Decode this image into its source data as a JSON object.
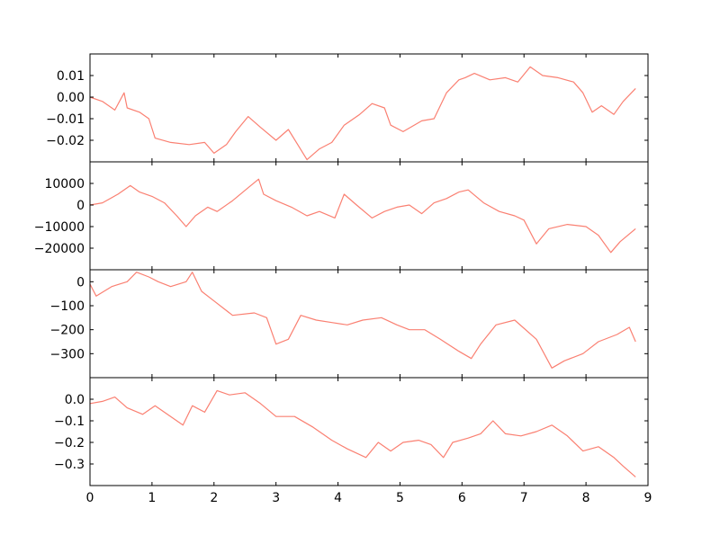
{
  "chart_data": {
    "type": "line",
    "x_range": [
      0,
      9
    ],
    "x_ticks": [
      0,
      1,
      2,
      3,
      4,
      5,
      6,
      7,
      8,
      9
    ],
    "x_tick_labels": [
      "0",
      "1",
      "2",
      "3",
      "4",
      "5",
      "6",
      "7",
      "8",
      "9"
    ],
    "grid": false,
    "line_color": "#fa8072",
    "panels": [
      {
        "id": "panel-1",
        "ylim": [
          -0.03,
          0.02
        ],
        "y_ticks": [
          0.01,
          0.0,
          -0.01,
          -0.02
        ],
        "y_tick_labels": [
          "0.01",
          "0.00",
          "−0.01",
          "−0.02"
        ],
        "x": [
          0,
          0.2,
          0.4,
          0.55,
          0.6,
          0.8,
          0.95,
          1.05,
          1.3,
          1.6,
          1.85,
          2.0,
          2.2,
          2.35,
          2.55,
          2.75,
          3.0,
          3.2,
          3.35,
          3.5,
          3.7,
          3.9,
          4.1,
          4.35,
          4.55,
          4.75,
          4.85,
          5.05,
          5.35,
          5.55,
          5.75,
          5.95,
          6.05,
          6.2,
          6.45,
          6.7,
          6.9,
          7.1,
          7.3,
          7.55,
          7.8,
          7.95,
          8.1,
          8.25,
          8.45,
          8.6,
          8.8
        ],
        "y": [
          0.0,
          -0.002,
          -0.006,
          0.002,
          -0.005,
          -0.007,
          -0.01,
          -0.019,
          -0.021,
          -0.022,
          -0.021,
          -0.026,
          -0.022,
          -0.016,
          -0.009,
          -0.014,
          -0.02,
          -0.015,
          -0.022,
          -0.029,
          -0.024,
          -0.021,
          -0.013,
          -0.008,
          -0.003,
          -0.005,
          -0.013,
          -0.016,
          -0.011,
          -0.01,
          0.002,
          0.008,
          0.009,
          0.011,
          0.008,
          0.009,
          0.007,
          0.014,
          0.01,
          0.009,
          0.007,
          0.002,
          -0.007,
          -0.004,
          -0.008,
          -0.002,
          0.004
        ]
      },
      {
        "id": "panel-2",
        "ylim": [
          -30000,
          20000
        ],
        "y_ticks": [
          10000,
          0,
          -10000,
          -20000
        ],
        "y_tick_labels": [
          "10000",
          "0",
          "−10000",
          "−20000"
        ],
        "x": [
          0,
          0.2,
          0.45,
          0.65,
          0.8,
          1.0,
          1.2,
          1.4,
          1.55,
          1.7,
          1.9,
          2.05,
          2.3,
          2.55,
          2.72,
          2.8,
          3.0,
          3.25,
          3.5,
          3.7,
          3.95,
          4.1,
          4.3,
          4.55,
          4.75,
          4.95,
          5.15,
          5.35,
          5.55,
          5.75,
          5.95,
          6.1,
          6.35,
          6.6,
          6.85,
          7.0,
          7.2,
          7.4,
          7.7,
          8.0,
          8.2,
          8.4,
          8.55,
          8.8
        ],
        "y": [
          0,
          1000,
          5000,
          9000,
          6000,
          4000,
          1000,
          -5000,
          -10000,
          -5000,
          -1000,
          -3000,
          2000,
          8000,
          12000,
          5000,
          2000,
          -1000,
          -5000,
          -3000,
          -6000,
          5000,
          0,
          -6000,
          -3000,
          -1000,
          0,
          -4000,
          1000,
          3000,
          6000,
          7000,
          1000,
          -3000,
          -5000,
          -7000,
          -18000,
          -11000,
          -9000,
          -10000,
          -14000,
          -22000,
          -17000,
          -11000
        ]
      },
      {
        "id": "panel-3",
        "ylim": [
          -400,
          50
        ],
        "y_ticks": [
          0,
          -100,
          -200,
          -300
        ],
        "y_tick_labels": [
          "0",
          "−100",
          "−200",
          "−300"
        ],
        "x": [
          0,
          0.1,
          0.35,
          0.6,
          0.75,
          0.95,
          1.1,
          1.3,
          1.55,
          1.65,
          1.8,
          2.0,
          2.3,
          2.65,
          2.85,
          3.0,
          3.2,
          3.4,
          3.65,
          3.9,
          4.15,
          4.4,
          4.7,
          4.95,
          5.15,
          5.4,
          5.65,
          5.95,
          6.15,
          6.3,
          6.55,
          6.85,
          7.2,
          7.45,
          7.65,
          7.95,
          8.2,
          8.5,
          8.7,
          8.8
        ],
        "y": [
          -10,
          -60,
          -20,
          0,
          40,
          20,
          0,
          -20,
          0,
          40,
          -40,
          -80,
          -140,
          -130,
          -150,
          -260,
          -240,
          -140,
          -160,
          -170,
          -180,
          -160,
          -150,
          -180,
          -200,
          -200,
          -240,
          -290,
          -320,
          -260,
          -180,
          -160,
          -240,
          -360,
          -330,
          -300,
          -250,
          -220,
          -190,
          -250
        ]
      },
      {
        "id": "panel-4",
        "ylim": [
          -0.4,
          0.1
        ],
        "y_ticks": [
          0.0,
          -0.1,
          -0.2,
          -0.3
        ],
        "y_tick_labels": [
          "0.0",
          "−0.1",
          "−0.2",
          "−0.3"
        ],
        "x": [
          0,
          0.2,
          0.4,
          0.6,
          0.85,
          1.05,
          1.3,
          1.5,
          1.65,
          1.85,
          2.05,
          2.25,
          2.5,
          2.75,
          3.0,
          3.3,
          3.6,
          3.9,
          4.15,
          4.45,
          4.65,
          4.85,
          5.05,
          5.3,
          5.5,
          5.7,
          5.85,
          6.1,
          6.3,
          6.5,
          6.7,
          6.95,
          7.2,
          7.45,
          7.7,
          7.95,
          8.2,
          8.45,
          8.6,
          8.8
        ],
        "y": [
          -0.02,
          -0.01,
          0.01,
          -0.04,
          -0.07,
          -0.03,
          -0.08,
          -0.12,
          -0.03,
          -0.06,
          0.04,
          0.02,
          0.03,
          -0.02,
          -0.08,
          -0.08,
          -0.13,
          -0.19,
          -0.23,
          -0.27,
          -0.2,
          -0.24,
          -0.2,
          -0.19,
          -0.21,
          -0.27,
          -0.2,
          -0.18,
          -0.16,
          -0.1,
          -0.16,
          -0.17,
          -0.15,
          -0.12,
          -0.17,
          -0.24,
          -0.22,
          -0.27,
          -0.31,
          -0.36
        ]
      }
    ]
  }
}
